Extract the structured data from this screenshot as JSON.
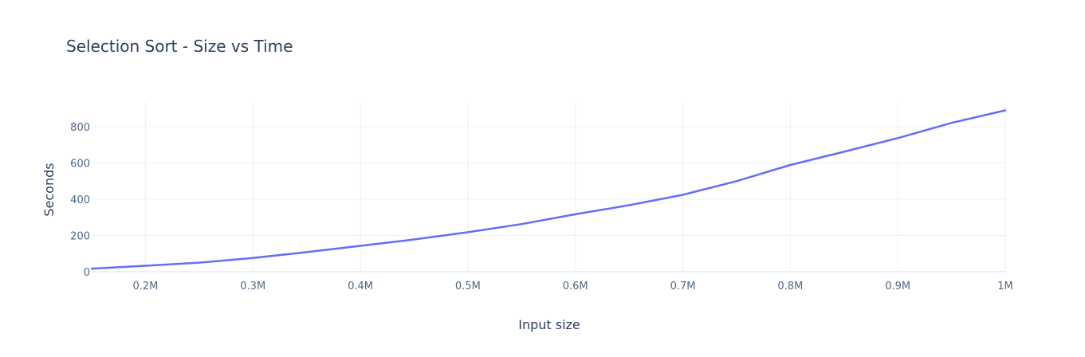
{
  "chart_data": {
    "type": "line",
    "title": "Selection Sort - Size vs Time",
    "xlabel": "Input size",
    "ylabel": "Seconds",
    "xlim": [
      150000,
      1000000
    ],
    "ylim": [
      -10,
      930
    ],
    "x_ticks": [
      200000,
      300000,
      400000,
      500000,
      600000,
      700000,
      800000,
      900000,
      1000000
    ],
    "x_tick_labels": [
      "0.2M",
      "0.3M",
      "0.4M",
      "0.5M",
      "0.6M",
      "0.7M",
      "0.8M",
      "0.9M",
      "1M"
    ],
    "y_ticks": [
      0,
      200,
      400,
      600,
      800
    ],
    "y_tick_labels": [
      "0",
      "200",
      "400",
      "600",
      "800"
    ],
    "grid": true,
    "legend": "none",
    "series": [
      {
        "color": "#636efa",
        "x": [
          150000,
          200000,
          250000,
          300000,
          350000,
          400000,
          450000,
          500000,
          550000,
          600000,
          650000,
          700000,
          750000,
          800000,
          850000,
          900000,
          950000,
          1000000
        ],
        "y": [
          17,
          33,
          50,
          76,
          108,
          143,
          178,
          218,
          263,
          317,
          367,
          424,
          500,
          589,
          662,
          737,
          821,
          890
        ]
      }
    ]
  }
}
